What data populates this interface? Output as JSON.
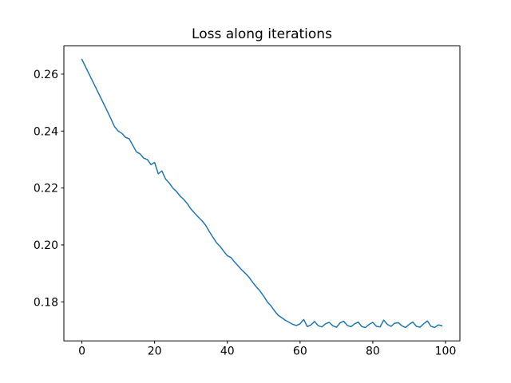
{
  "chart_data": {
    "type": "line",
    "title": "Loss along iterations",
    "xlabel": "",
    "ylabel": "",
    "grid": false,
    "legend": "none",
    "background": "#ffffff",
    "frame_color": "#000000",
    "text_color": "#000000",
    "tick_font_size": 14,
    "title_font_size": 17,
    "line_width": 1.5,
    "x_start": 0,
    "x_step": 1,
    "xlim": [
      -4.95,
      103.95
    ],
    "ylim": [
      0.1663,
      0.2699
    ],
    "xticks": {
      "values": [
        0,
        20,
        40,
        60,
        80,
        100
      ],
      "labels": [
        "0",
        "20",
        "40",
        "60",
        "80",
        "100"
      ]
    },
    "yticks": {
      "values": [
        0.18,
        0.2,
        0.22,
        0.24,
        0.26
      ],
      "labels": [
        "0.18",
        "0.20",
        "0.22",
        "0.24",
        "0.26"
      ]
    },
    "series": [
      {
        "name": "loss",
        "color": "#1f77b4",
        "values": [
          0.2652,
          0.2626,
          0.26,
          0.2574,
          0.2548,
          0.2522,
          0.2496,
          0.247,
          0.2443,
          0.2415,
          0.24,
          0.2392,
          0.2378,
          0.2373,
          0.235,
          0.2327,
          0.232,
          0.2305,
          0.23,
          0.2282,
          0.229,
          0.225,
          0.226,
          0.2232,
          0.2218,
          0.22,
          0.2188,
          0.2172,
          0.216,
          0.2145,
          0.2126,
          0.2112,
          0.2098,
          0.2085,
          0.207,
          0.2048,
          0.2028,
          0.2008,
          0.1995,
          0.1978,
          0.1962,
          0.1956,
          0.194,
          0.1926,
          0.1912,
          0.19,
          0.1886,
          0.1868,
          0.1852,
          0.1838,
          0.182,
          0.18,
          0.1786,
          0.1768,
          0.1753,
          0.1744,
          0.1735,
          0.1728,
          0.1721,
          0.1717,
          0.1723,
          0.1738,
          0.1713,
          0.1719,
          0.1731,
          0.1716,
          0.1712,
          0.1723,
          0.1728,
          0.1716,
          0.1711,
          0.1726,
          0.1732,
          0.1717,
          0.1713,
          0.1723,
          0.1729,
          0.1713,
          0.171,
          0.1721,
          0.1728,
          0.1714,
          0.1712,
          0.1736,
          0.1721,
          0.1714,
          0.1725,
          0.1727,
          0.1716,
          0.171,
          0.1721,
          0.1729,
          0.1714,
          0.1711,
          0.1723,
          0.1733,
          0.1714,
          0.171,
          0.1719,
          0.1716
        ]
      }
    ]
  }
}
